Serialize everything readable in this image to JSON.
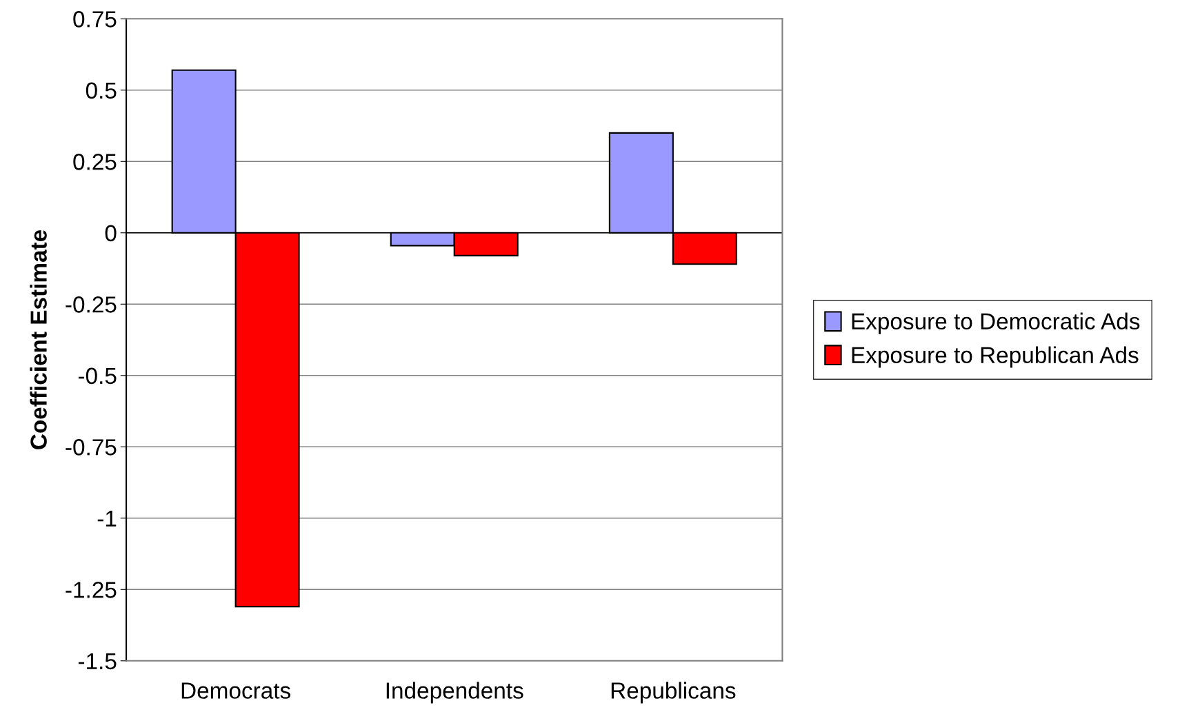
{
  "chart_data": {
    "type": "bar",
    "ylabel": "Coefficient Estimate",
    "categories": [
      "Democrats",
      "Independents",
      "Republicans"
    ],
    "series": [
      {
        "name": "Exposure to Democratic Ads",
        "color": "#9999ff",
        "values": [
          0.57,
          -0.045,
          0.35
        ]
      },
      {
        "name": "Exposure to Republican Ads",
        "color": "#ff0000",
        "values": [
          -1.31,
          -0.08,
          -0.11
        ]
      }
    ],
    "ylim": [
      -1.5,
      0.75
    ],
    "yticks": [
      0.75,
      0.5,
      0.25,
      0,
      {
        "value": -0.25,
        "label": "-0.25"
      },
      {
        "value": -0.5,
        "label": "-0.5"
      },
      {
        "value": -0.75,
        "label": "-0.75"
      },
      {
        "value": -1,
        "label": "-1"
      },
      {
        "value": -1.25,
        "label": "-1.25"
      },
      {
        "value": -1.5,
        "label": "-1.5"
      }
    ],
    "grid": "y",
    "legend": "right"
  }
}
